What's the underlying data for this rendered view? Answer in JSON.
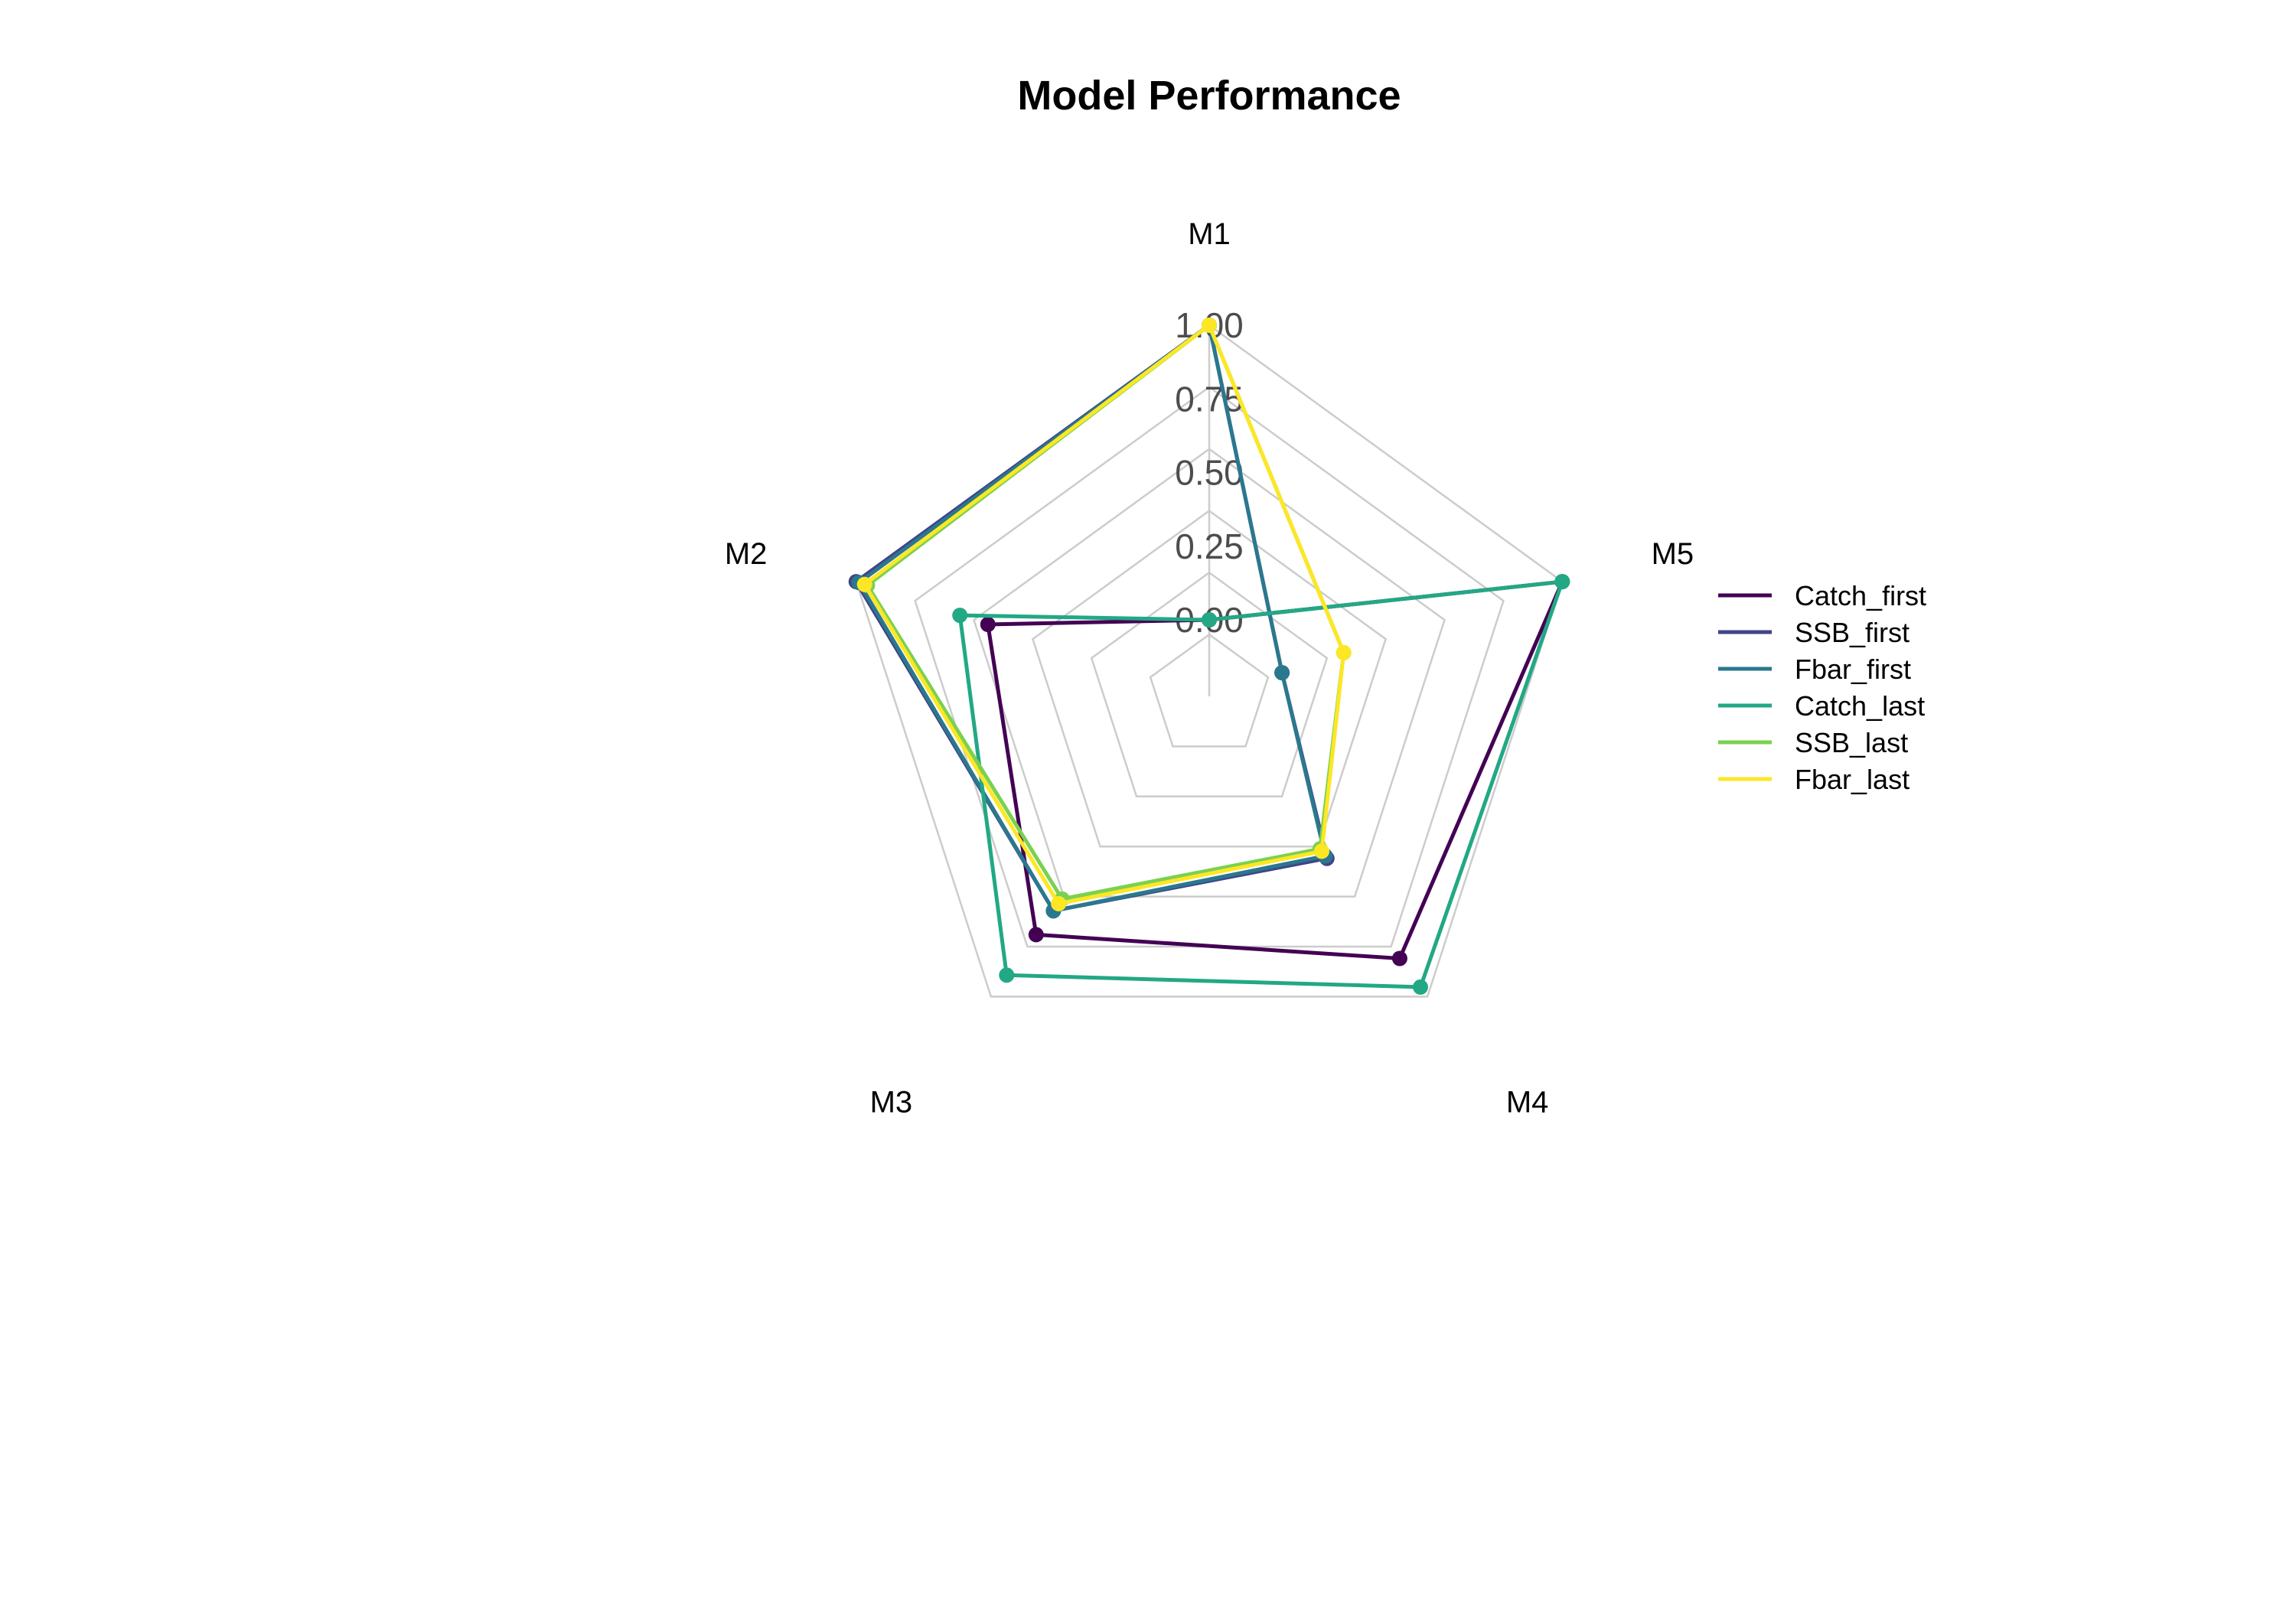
{
  "chart_data": {
    "type": "radar",
    "title": "Model Performance",
    "categories": [
      "M1",
      "M2",
      "M3",
      "M4",
      "M5"
    ],
    "rlim": [
      0,
      1
    ],
    "ticks": [
      "0.00",
      "0.25",
      "0.50",
      "0.75",
      "1.00"
    ],
    "grid": true,
    "legend_position": "right",
    "series": [
      {
        "name": "Catch_first",
        "color": "#440154",
        "values": [
          0.0,
          0.53,
          0.74,
          0.84,
          1.0
        ]
      },
      {
        "name": "SSB_first",
        "color": "#414487",
        "values": [
          1.0,
          1.0,
          0.64,
          0.42,
          0.0
        ]
      },
      {
        "name": "Fbar_first",
        "color": "#2A788E",
        "values": [
          1.0,
          0.99,
          0.64,
          0.41,
          0.0
        ]
      },
      {
        "name": "Catch_last",
        "color": "#22A884",
        "values": [
          0.0,
          0.63,
          0.91,
          0.96,
          1.0
        ]
      },
      {
        "name": "SSB_last",
        "color": "#7AD151",
        "values": [
          1.0,
          0.96,
          0.59,
          0.38,
          0.22
        ]
      },
      {
        "name": "Fbar_last",
        "color": "#FDE725",
        "values": [
          1.0,
          0.97,
          0.61,
          0.39,
          0.22
        ]
      }
    ]
  }
}
